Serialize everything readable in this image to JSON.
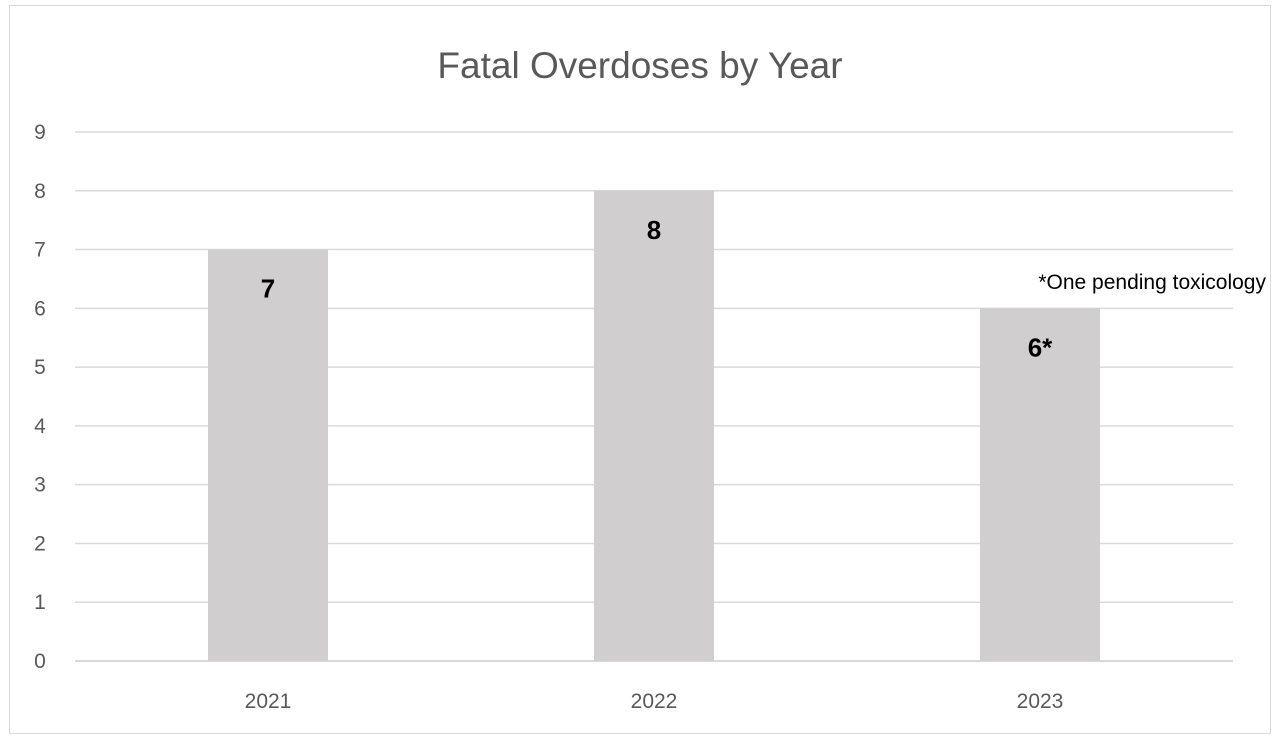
{
  "chart_data": {
    "type": "bar",
    "title": "Fatal Overdoses by Year",
    "categories": [
      "2021",
      "2022",
      "2023"
    ],
    "values": [
      7,
      8,
      6
    ],
    "data_labels": [
      "7",
      "8",
      "6*"
    ],
    "ylim": [
      0,
      9
    ],
    "yticks": [
      "0",
      "1",
      "2",
      "3",
      "4",
      "5",
      "6",
      "7",
      "8",
      "9"
    ],
    "grid": true,
    "legend": "none",
    "bar_color": "#d0cece",
    "annotation": "*One pending toxicology"
  }
}
